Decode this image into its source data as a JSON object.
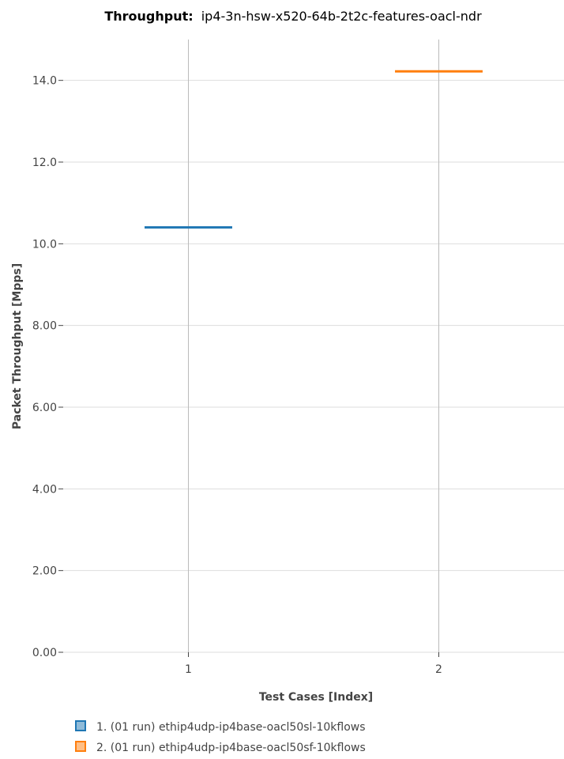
{
  "chart_data": {
    "type": "box",
    "title_prefix": "Throughput:",
    "title": "ip4-3n-hsw-x520-64b-2t2c-features-oacl-ndr",
    "xlabel": "Test Cases [Index]",
    "ylabel": "Packet Throughput [Mpps]",
    "categories": [
      "1",
      "2"
    ],
    "xlim": [
      0.5,
      2.5
    ],
    "ylim": [
      0,
      15
    ],
    "yticks": [
      0,
      2,
      4,
      6,
      8,
      10,
      12,
      14
    ],
    "ytick_labels": [
      "0.00",
      "2.00",
      "4.00",
      "6.00",
      "8.00",
      "10.0",
      "12.0",
      "14.0"
    ],
    "grid": true,
    "legend_position": "bottom-left",
    "series": [
      {
        "name": "1. (01 run) ethip4udp-ip4base-oacl50sl-10kflows",
        "x": 1,
        "values": [
          10.4
        ],
        "color": "#1f77b4",
        "fill": "#8fbbd9"
      },
      {
        "name": "2. (01 run) ethip4udp-ip4base-oacl50sf-10kflows",
        "x": 2,
        "values": [
          14.22
        ],
        "color": "#ff7f0e",
        "fill": "#ffbf86"
      }
    ]
  }
}
